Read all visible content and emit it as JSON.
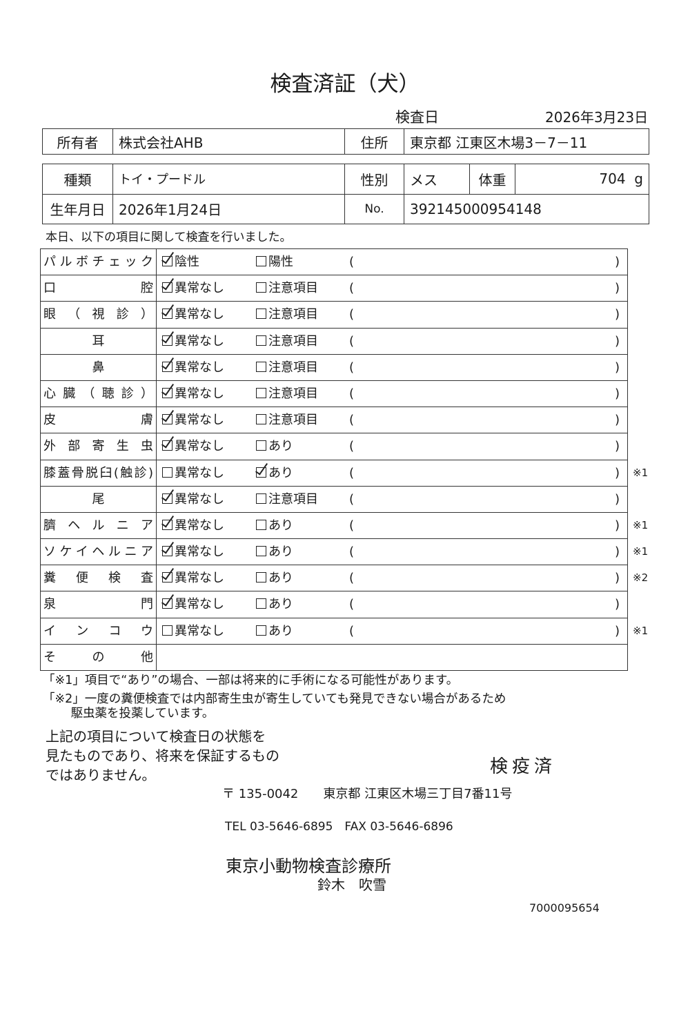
{
  "title": "検査済証（犬）",
  "exam_date": {
    "label": "検査日",
    "value": "2026年3月23日"
  },
  "owner": {
    "label": "所有者",
    "value": "株式会社AHB",
    "address_label": "住所",
    "address": "東京都 江東区木場3－7－11"
  },
  "pet": {
    "kind_label": "種類",
    "kind": "トイ・プードル",
    "sex_label": "性別",
    "sex": "メス",
    "weight_label": "体重",
    "weight": "704",
    "weight_unit": "g",
    "birth_label": "生年月日",
    "birth": "2026年1月24日",
    "no_label": "No.",
    "no": "392145000954148"
  },
  "intro": "本日、以下の項目に関して検査を行いました。",
  "items": [
    {
      "label": "パルボチェック",
      "opt1": "陰性",
      "opt2": "陽性",
      "checked": 1,
      "note": ""
    },
    {
      "label": "口腔",
      "opt1": "異常なし",
      "opt2": "注意項目",
      "checked": 1,
      "note": ""
    },
    {
      "label": "眼（視診）",
      "opt1": "異常なし",
      "opt2": "注意項目",
      "checked": 1,
      "note": ""
    },
    {
      "label": "耳",
      "opt1": "異常なし",
      "opt2": "注意項目",
      "checked": 1,
      "note": ""
    },
    {
      "label": "鼻",
      "opt1": "異常なし",
      "opt2": "注意項目",
      "checked": 1,
      "note": ""
    },
    {
      "label": "心臓（聴診）",
      "opt1": "異常なし",
      "opt2": "注意項目",
      "checked": 1,
      "note": ""
    },
    {
      "label": "皮膚",
      "opt1": "異常なし",
      "opt2": "注意項目",
      "checked": 1,
      "note": ""
    },
    {
      "label": "外部寄生虫",
      "opt1": "異常なし",
      "opt2": "あり",
      "checked": 1,
      "note": ""
    },
    {
      "label": "膝蓋骨脱臼(触診)",
      "opt1": "異常なし",
      "opt2": "あり",
      "checked": 2,
      "note": "※1"
    },
    {
      "label": "尾",
      "opt1": "異常なし",
      "opt2": "注意項目",
      "checked": 1,
      "note": ""
    },
    {
      "label": "臍ヘルニア",
      "opt1": "異常なし",
      "opt2": "あり",
      "checked": 1,
      "note": "※1"
    },
    {
      "label": "ソケイヘルニア",
      "opt1": "異常なし",
      "opt2": "あり",
      "checked": 1,
      "note": "※1"
    },
    {
      "label": "糞便検査",
      "opt1": "異常なし",
      "opt2": "あり",
      "checked": 1,
      "note": "※2"
    },
    {
      "label": "泉門",
      "opt1": "異常なし",
      "opt2": "あり",
      "checked": 1,
      "note": ""
    },
    {
      "label": "インコウ",
      "opt1": "異常なし",
      "opt2": "あり",
      "checked": 0,
      "note": "※1"
    }
  ],
  "other_label": "その他",
  "paren_open": "(",
  "paren_close": ")",
  "footnotes": [
    "「※1」項目で“あり”の場合、一部は将来的に手術になる可能性があります。",
    "「※2」一度の糞便検査では内部寄生虫が寄生していても発見できない場合があるため",
    "　　 駆虫薬を投薬しています。"
  ],
  "conclusion": "上記の項目について検査日の状態を\n見たものであり、将来を保証するもの\nではありません。",
  "stamp": "検疫済",
  "clinic": {
    "address": "〒 135-0042　　東京都 江東区木場三丁目7番11号",
    "tel": "TEL 03-5646-6895　FAX 03-5646-6896",
    "name": "東京小動物検査診療所",
    "doctor": "鈴木　吹雪"
  },
  "serial": "7000095654"
}
